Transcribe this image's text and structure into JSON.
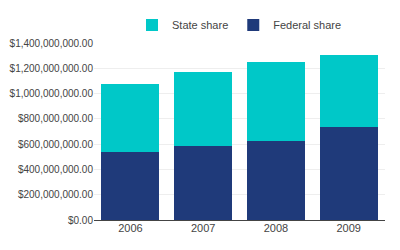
{
  "chart_data": {
    "type": "bar",
    "stacked": true,
    "categories": [
      "2006",
      "2007",
      "2008",
      "2009"
    ],
    "series": [
      {
        "name": "Federal share",
        "color": "#1F3A7A",
        "values": [
          537000000,
          583000000,
          628000000,
          733000000
        ]
      },
      {
        "name": "State share",
        "color": "#00C8C8",
        "values": [
          538000000,
          588000000,
          618000000,
          572000000
        ]
      }
    ],
    "ylim": [
      0,
      1400000000
    ],
    "yticks": [
      {
        "value": 0,
        "label": "$0.00"
      },
      {
        "value": 200000000,
        "label": "$200,000,000.00"
      },
      {
        "value": 400000000,
        "label": "$400,000,000.00"
      },
      {
        "value": 600000000,
        "label": "$600,000,000.00"
      },
      {
        "value": 800000000,
        "label": "$800,000,000.00"
      },
      {
        "value": 1000000000,
        "label": "$1,000,000,000.00"
      },
      {
        "value": 1200000000,
        "label": "$1,200,000,000.00"
      },
      {
        "value": 1400000000,
        "label": "$1,400,000,000.00"
      }
    ],
    "grid": true,
    "legend": "top"
  }
}
